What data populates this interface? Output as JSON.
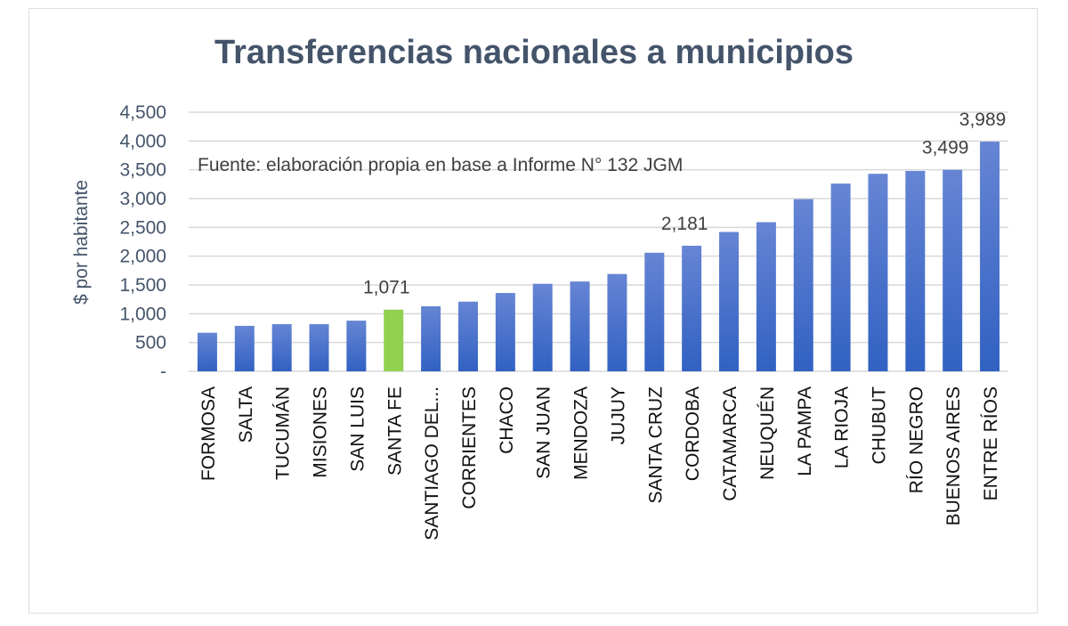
{
  "chart_data": {
    "type": "bar",
    "title": "Transferencias nacionales a municipios",
    "ylabel": "$ por habitante",
    "xlabel": "",
    "annotation": "Fuente: elaboración propia en base a Informe N° 132 JGM",
    "ylim": [
      0,
      4500
    ],
    "yticks": [
      0,
      500,
      1000,
      1500,
      2000,
      2500,
      3000,
      3500,
      4000,
      4500
    ],
    "ytick_labels": [
      "-",
      "500",
      "1,000",
      "1,500",
      "2,000",
      "2,500",
      "3,000",
      "3,500",
      "4,000",
      "4,500"
    ],
    "grid": true,
    "legend": "none",
    "categories": [
      "FORMOSA",
      "SALTA",
      "TUCUMÁN",
      "MISIONES",
      "SAN LUIS",
      "SANTA FE",
      "SANTIAGO DEL...",
      "CORRIENTES",
      "CHACO",
      "SAN JUAN",
      "MENDOZA",
      "JUJUY",
      "SANTA CRUZ",
      "CORDOBA",
      "CATAMARCA",
      "NEUQUÉN",
      "LA PAMPA",
      "LA RIOJA",
      "CHUBUT",
      "RÍO NEGRO",
      "BUENOS AIRES",
      "ENTRE RÍOS"
    ],
    "values": [
      670,
      790,
      820,
      820,
      880,
      1071,
      1130,
      1210,
      1360,
      1520,
      1560,
      1690,
      2060,
      2181,
      2420,
      2590,
      2990,
      3260,
      3430,
      3480,
      3499,
      3989
    ],
    "highlight": {
      "index": 5,
      "color": "#92d050"
    },
    "data_labels": [
      {
        "index": 5,
        "text": "1,071"
      },
      {
        "index": 13,
        "text": "2,181"
      },
      {
        "index": 20,
        "text": "3,499"
      },
      {
        "index": 21,
        "text": "3,989"
      }
    ]
  },
  "colors": {
    "bar_top": "#6685d4",
    "bar_bottom": "#3161c2",
    "highlight": "#92d050",
    "grid": "#d9d9d9",
    "axis_text": "#44546a",
    "title": "#44546a"
  }
}
